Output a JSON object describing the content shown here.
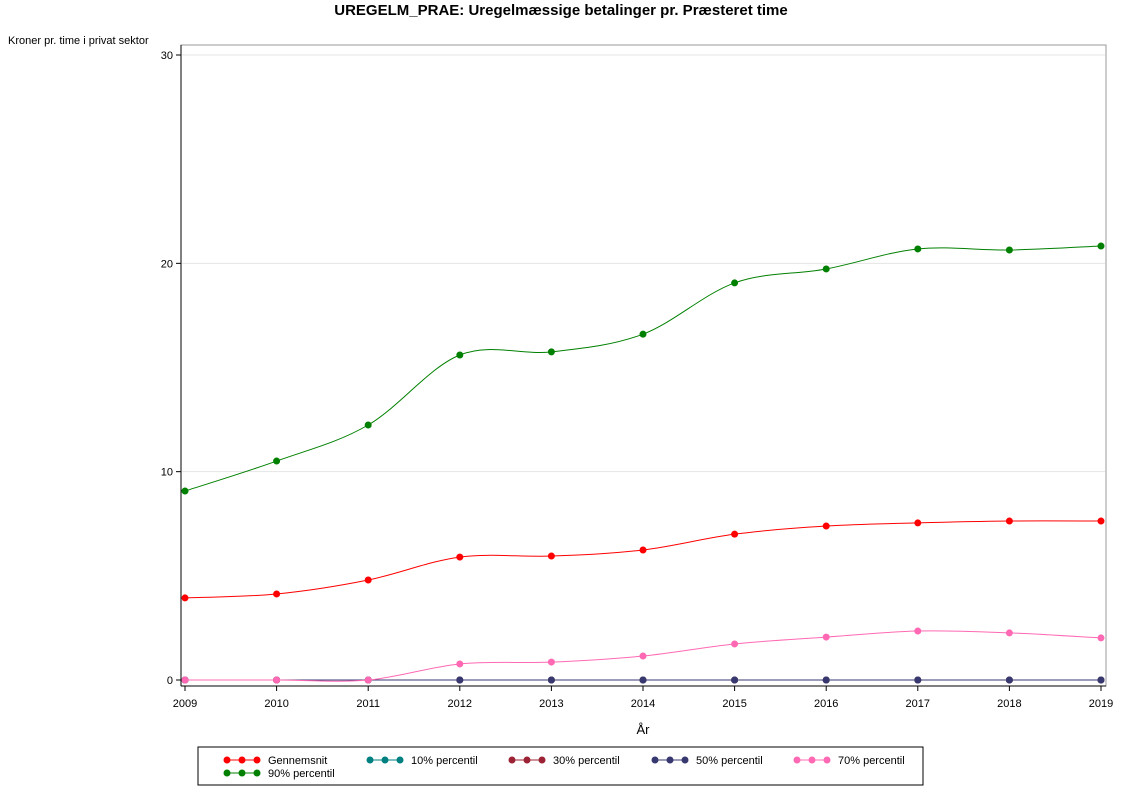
{
  "chart_data": {
    "type": "line",
    "title": "UREGELM_PRAE: Uregelmæssige betalinger pr. Præsteret time",
    "xlabel": "År",
    "ylabel": "Kroner pr. time i privat sektor",
    "x": [
      2009,
      2010,
      2011,
      2012,
      2013,
      2014,
      2015,
      2016,
      2017,
      2018,
      2019
    ],
    "x_tick_labels": [
      "2009",
      "2010",
      "2011",
      "2012",
      "2013",
      "2014",
      "2015",
      "2016",
      "2017",
      "2018",
      "2019"
    ],
    "ylim": [
      0,
      30
    ],
    "y_ticks": [
      0,
      10,
      20,
      30
    ],
    "y_tick_labels": [
      "0",
      "10",
      "20",
      "30"
    ],
    "grid": true,
    "legend_placement": "bottom",
    "series": [
      {
        "name": "Gennemsnit",
        "color": "#ff0000",
        "values": [
          3.94,
          4.13,
          4.8,
          5.9,
          5.95,
          6.24,
          7.0,
          7.39,
          7.54,
          7.63,
          7.63
        ]
      },
      {
        "name": "10% percentil",
        "color": "#008080",
        "values": [
          0,
          0,
          0,
          0,
          0,
          0,
          0,
          0,
          0,
          0,
          0
        ]
      },
      {
        "name": "30% percentil",
        "color": "#9b2335",
        "values": [
          0,
          0,
          0,
          0,
          0,
          0,
          0,
          0,
          0,
          0,
          0
        ]
      },
      {
        "name": "50% percentil",
        "color": "#383870",
        "values": [
          0,
          0,
          0,
          0,
          0,
          0,
          0,
          0,
          0,
          0,
          0
        ]
      },
      {
        "name": "70% percentil",
        "color": "#ff69b4",
        "values": [
          0,
          0,
          0,
          0.77,
          0.86,
          1.15,
          1.73,
          2.06,
          2.35,
          2.26,
          2.02
        ]
      },
      {
        "name": "90% percentil",
        "color": "#008000",
        "values": [
          9.07,
          10.51,
          12.24,
          15.6,
          15.75,
          16.6,
          19.06,
          19.73,
          20.69,
          20.64,
          20.83
        ]
      }
    ]
  }
}
